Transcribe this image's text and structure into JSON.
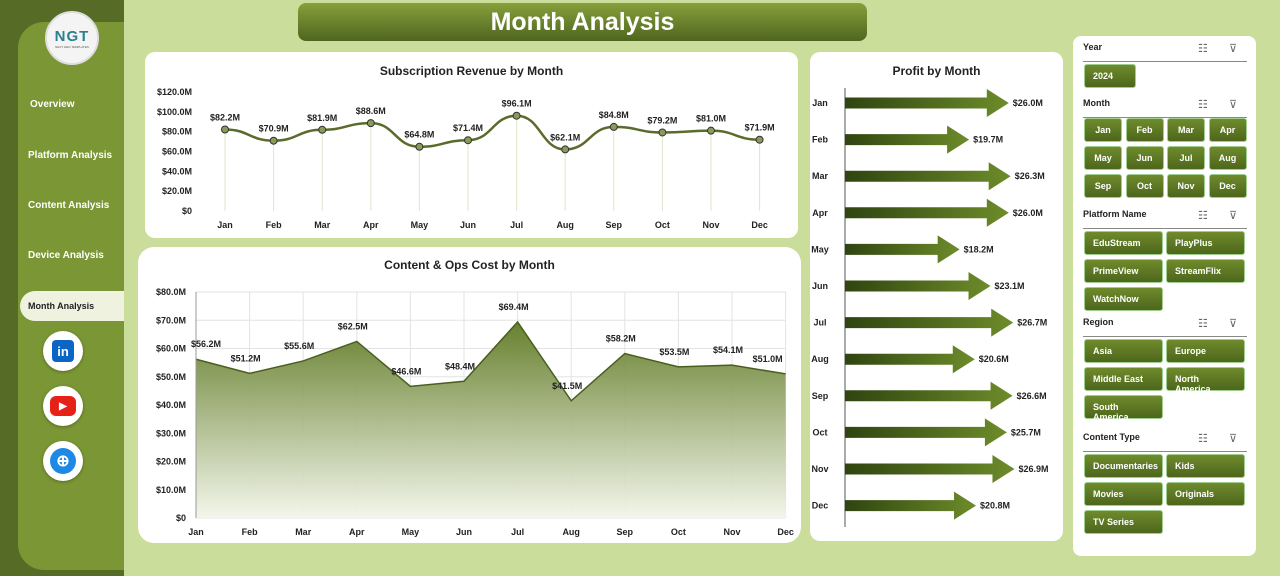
{
  "title": "Month Analysis",
  "logo": {
    "text": "NGT",
    "tagline": "NEXT GEN TEMPLATES"
  },
  "nav": [
    "Overview",
    "Platform Analysis",
    "Content Analysis",
    "Device Analysis",
    "Month Analysis"
  ],
  "active_nav": "Month Analysis",
  "social": [
    {
      "icon": "linkedin-icon",
      "label": "in",
      "color": "#0a66c2"
    },
    {
      "icon": "youtube-icon",
      "label": "▶",
      "color": "#e62117"
    },
    {
      "icon": "globe-icon",
      "label": "⊕",
      "color": "#1e88e5"
    }
  ],
  "chart_data": [
    {
      "type": "line",
      "title": "Subscription Revenue by Month",
      "categories": [
        "Jan",
        "Feb",
        "Mar",
        "Apr",
        "May",
        "Jun",
        "Jul",
        "Aug",
        "Sep",
        "Oct",
        "Nov",
        "Dec"
      ],
      "values": [
        82.2,
        70.9,
        81.9,
        88.6,
        64.8,
        71.4,
        96.1,
        62.1,
        84.8,
        79.2,
        81.0,
        71.9
      ],
      "labels": [
        "$82.2M",
        "$70.9M",
        "$81.9M",
        "$88.6M",
        "$64.8M",
        "$71.4M",
        "$96.1M",
        "$62.1M",
        "$84.8M",
        "$79.2M",
        "$81.0M",
        "$71.9M"
      ],
      "ylim": [
        0,
        120
      ],
      "yticks": [
        "$0",
        "$20.0M",
        "$40.0M",
        "$60.0M",
        "$80.0M",
        "$100.0M",
        "$120.0M"
      ],
      "color": "#5a6b2c"
    },
    {
      "type": "area",
      "title": "Content & Ops Cost by Month",
      "categories": [
        "Jan",
        "Feb",
        "Mar",
        "Apr",
        "May",
        "Jun",
        "Jul",
        "Aug",
        "Sep",
        "Oct",
        "Nov",
        "Dec"
      ],
      "values": [
        56.2,
        51.2,
        55.6,
        62.5,
        46.6,
        48.4,
        69.4,
        41.5,
        58.2,
        53.5,
        54.1,
        51.0
      ],
      "labels": [
        "$56.2M",
        "$51.2M",
        "$55.6M",
        "$62.5M",
        "$46.6M",
        "$48.4M",
        "$69.4M",
        "$41.5M",
        "$58.2M",
        "$53.5M",
        "$54.1M",
        "$51.0M"
      ],
      "ylim": [
        0,
        80
      ],
      "yticks": [
        "$0",
        "$10.0M",
        "$20.0M",
        "$30.0M",
        "$40.0M",
        "$50.0M",
        "$60.0M",
        "$70.0M",
        "$80.0M"
      ],
      "grid": true,
      "color": "#5a7026"
    },
    {
      "type": "bar",
      "orientation": "horizontal",
      "title": "Profit by Month",
      "categories": [
        "Jan",
        "Feb",
        "Mar",
        "Apr",
        "May",
        "Jun",
        "Jul",
        "Aug",
        "Sep",
        "Oct",
        "Nov",
        "Dec"
      ],
      "values": [
        26.0,
        19.7,
        26.3,
        26.0,
        18.2,
        23.1,
        26.7,
        20.6,
        26.6,
        25.7,
        26.9,
        20.8
      ],
      "labels": [
        "$26.0M",
        "$19.7M",
        "$26.3M",
        "$26.0M",
        "$18.2M",
        "$23.1M",
        "$26.7M",
        "$20.6M",
        "$26.6M",
        "$25.7M",
        "$26.9M",
        "$20.8M"
      ],
      "marker": "arrow",
      "color": "#4f6a1d"
    }
  ],
  "slicers": [
    {
      "title": "Year",
      "items": [
        "2024"
      ]
    },
    {
      "title": "Month",
      "items": [
        "Jan",
        "Feb",
        "Mar",
        "Apr",
        "May",
        "Jun",
        "Jul",
        "Aug",
        "Sep",
        "Oct",
        "Nov",
        "Dec"
      ]
    },
    {
      "title": "Platform Name",
      "items": [
        "EduStream",
        "PlayPlus",
        "PrimeView",
        "StreamFlix",
        "WatchNow"
      ]
    },
    {
      "title": "Region",
      "items": [
        "Asia",
        "Europe",
        "Middle East",
        "North America",
        "South America"
      ]
    },
    {
      "title": "Content Type",
      "items": [
        "Documentaries",
        "Kids",
        "Movies",
        "Originals",
        "TV Series"
      ]
    }
  ]
}
